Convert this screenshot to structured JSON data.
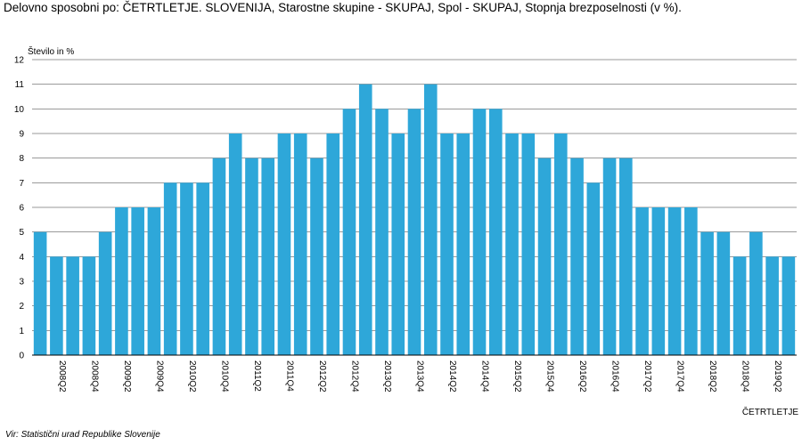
{
  "title": "Delovno sposobni po: ČETRTLETJE. SLOVENIJA, Starostne skupine - SKUPAJ, Spol - SKUPAJ, Stopnja brezposelnosti (v %).",
  "source": "Vir: Statistični urad Republike Slovenije",
  "colors": {
    "bar": "#2ea7d9",
    "grid": "#9a9a9a",
    "axis": "#000000"
  },
  "chart_data": {
    "type": "bar",
    "ylabel": "Število in %",
    "xlabel": "ČETRTLETJE",
    "ylim": [
      0,
      12
    ],
    "yticks": [
      0,
      1,
      2,
      3,
      4,
      5,
      6,
      7,
      8,
      9,
      10,
      11,
      12
    ],
    "grid": true,
    "categories": [
      "2008Q1",
      "2008Q2",
      "2008Q3",
      "2008Q4",
      "2009Q1",
      "2009Q2",
      "2009Q3",
      "2009Q4",
      "2010Q1",
      "2010Q2",
      "2010Q3",
      "2010Q4",
      "2011Q1",
      "2011Q2",
      "2011Q3",
      "2011Q4",
      "2012Q1",
      "2012Q2",
      "2012Q3",
      "2012Q4",
      "2013Q1",
      "2013Q2",
      "2013Q3",
      "2013Q4",
      "2014Q1",
      "2014Q2",
      "2014Q3",
      "2014Q4",
      "2015Q1",
      "2015Q2",
      "2015Q3",
      "2015Q4",
      "2016Q1",
      "2016Q2",
      "2016Q3",
      "2016Q4",
      "2017Q1",
      "2017Q2",
      "2017Q3",
      "2017Q4",
      "2018Q1",
      "2018Q2",
      "2018Q3",
      "2018Q4",
      "2019Q1",
      "2019Q2",
      "2019Q3"
    ],
    "visible_tick_labels": [
      "2008Q2",
      "2008Q4",
      "2009Q2",
      "2009Q4",
      "2010Q2",
      "2010Q4",
      "2011Q2",
      "2011Q4",
      "2012Q2",
      "2012Q4",
      "2013Q2",
      "2013Q4",
      "2014Q2",
      "2014Q4",
      "2015Q2",
      "2015Q4",
      "2016Q2",
      "2016Q4",
      "2017Q2",
      "2017Q4",
      "2018Q2",
      "2018Q4",
      "2019Q2"
    ],
    "values": [
      5,
      4,
      4,
      4,
      5,
      6,
      6,
      6,
      7,
      7,
      7,
      8,
      9,
      8,
      8,
      9,
      9,
      8,
      9,
      10,
      11,
      10,
      9,
      10,
      11,
      9,
      9,
      10,
      10,
      9,
      9,
      8,
      9,
      8,
      7,
      8,
      8,
      6,
      6,
      6,
      6,
      5,
      5,
      4,
      5,
      4,
      4
    ]
  }
}
